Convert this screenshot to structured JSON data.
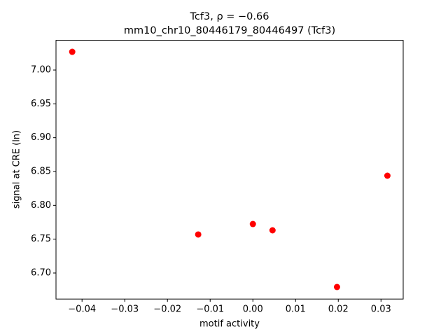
{
  "chart_data": {
    "type": "scatter",
    "title": [
      "Tcf3, ρ = −0.66",
      "mm10_chr10_80446179_80446497 (Tcf3)"
    ],
    "xlabel": "motif activity",
    "ylabel": "signal at CRE (ln)",
    "x": [
      -0.0423,
      -0.0128,
      0.0,
      0.0046,
      0.0197,
      0.0315
    ],
    "values": [
      7.0269,
      6.7569,
      6.7724,
      6.7631,
      6.6793,
      6.8438
    ],
    "color": "#ff0000",
    "xlim": [
      -0.0461,
      0.0352
    ],
    "ylim": [
      6.6615,
      7.0439
    ],
    "xticks": [
      {
        "value": -0.04,
        "label": "−0.04"
      },
      {
        "value": -0.03,
        "label": "−0.03"
      },
      {
        "value": -0.02,
        "label": "−0.02"
      },
      {
        "value": -0.01,
        "label": "−0.01"
      },
      {
        "value": 0,
        "label": "0.00"
      },
      {
        "value": 0.01,
        "label": "0.01"
      },
      {
        "value": 0.02,
        "label": "0.02"
      },
      {
        "value": 0.03,
        "label": "0.03"
      }
    ],
    "yticks": [
      {
        "value": 6.7,
        "label": "6.70"
      },
      {
        "value": 6.75,
        "label": "6.75"
      },
      {
        "value": 6.8,
        "label": "6.80"
      },
      {
        "value": 6.85,
        "label": "6.85"
      },
      {
        "value": 6.9,
        "label": "6.90"
      },
      {
        "value": 6.95,
        "label": "6.95"
      },
      {
        "value": 7.0,
        "label": "7.00"
      }
    ]
  }
}
